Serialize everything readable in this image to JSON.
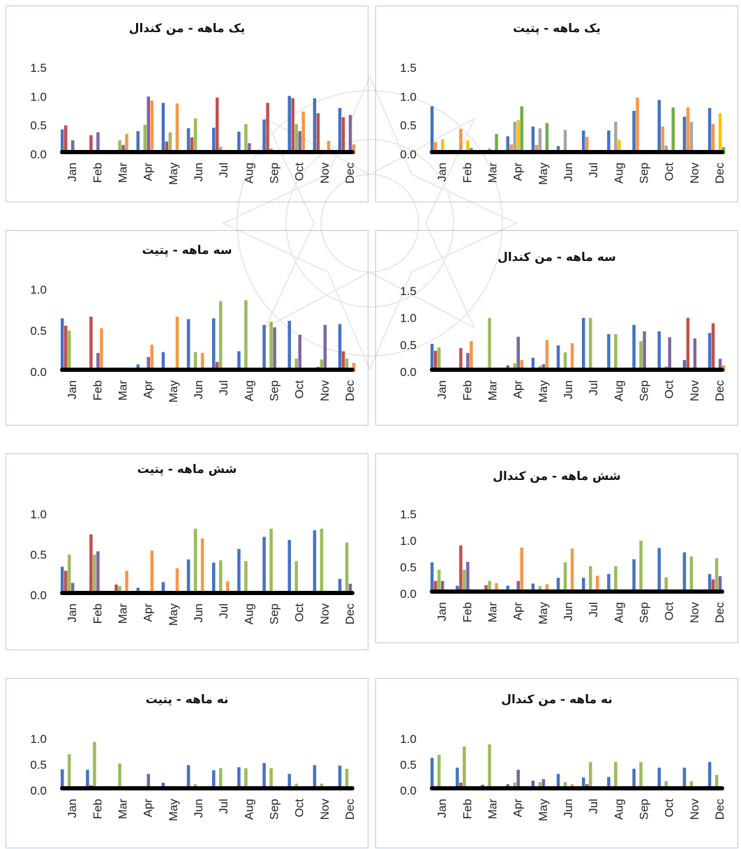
{
  "months": [
    "Jan",
    "Feb",
    "Mar",
    "Apr",
    "May",
    "Jun",
    "Jul",
    "Aug",
    "Sep",
    "Oct",
    "Nov",
    "Dec"
  ],
  "colors": {
    "blue": "#4472c4",
    "red": "#c0504d",
    "green": "#9bbb59",
    "purple": "#8064a2",
    "orange": "#f79646",
    "gray": "#a5a5a5",
    "yellow": "#ffc000",
    "darkgreen": "#70ad47",
    "baseline": "#000000"
  },
  "chart_data": [
    {
      "type": "bar",
      "title": "یک ماهه - من کندال",
      "categories": [
        "Jan",
        "Feb",
        "Mar",
        "Apr",
        "May",
        "Jun",
        "Jul",
        "Aug",
        "Sep",
        "Oct",
        "Nov",
        "Dec"
      ],
      "yticks": [
        "0.0",
        "0.5",
        "1.0",
        "1.5"
      ],
      "ylim": [
        0,
        1.5
      ],
      "series": [
        {
          "color": "blue",
          "values": [
            0.43,
            0,
            0,
            0.4,
            0.89,
            0.45,
            0.46,
            0.39,
            0.6,
            1.01,
            0.97,
            0.8
          ]
        },
        {
          "color": "red",
          "values": [
            0.5,
            0.33,
            0,
            0,
            0.22,
            0.29,
            0.98,
            0,
            0.89,
            0.97,
            0.71,
            0.64
          ]
        },
        {
          "color": "green",
          "values": [
            0,
            0,
            0.24,
            0.51,
            0.38,
            0.62,
            0.13,
            0.52,
            0.1,
            0.52,
            0,
            0
          ]
        },
        {
          "color": "purple",
          "values": [
            0.24,
            0.38,
            0.16,
            1.0,
            0,
            0,
            0,
            0.19,
            0,
            0.4,
            0,
            0.68
          ]
        },
        {
          "color": "orange",
          "values": [
            0,
            0,
            0.35,
            0.93,
            0.88,
            0,
            0,
            0,
            0,
            0.74,
            0.23,
            0.17
          ]
        }
      ]
    },
    {
      "type": "bar",
      "title": "یک ماهه - پتیت",
      "categories": [
        "Jan",
        "Feb",
        "Mar",
        "Apr",
        "May",
        "Jun",
        "Jul",
        "Aug",
        "Sep",
        "Oct",
        "Nov",
        "Dec"
      ],
      "yticks": [
        "0.0",
        "0.5",
        "1.0",
        "1.5"
      ],
      "ylim": [
        0,
        1.5
      ],
      "series": [
        {
          "color": "blue",
          "values": [
            0.83,
            0,
            0,
            0.31,
            0.48,
            0.14,
            0.41,
            0.41,
            0.75,
            0.94,
            0.65,
            0.8
          ]
        },
        {
          "color": "orange",
          "values": [
            0.21,
            0.44,
            0,
            0.17,
            0.16,
            0.05,
            0.3,
            0,
            0.98,
            0.48,
            0.81,
            0.52
          ]
        },
        {
          "color": "gray",
          "values": [
            0,
            0,
            0.1,
            0.56,
            0.45,
            0.42,
            0,
            0.56,
            0,
            0.15,
            0.56,
            0
          ]
        },
        {
          "color": "yellow",
          "values": [
            0.26,
            0.24,
            0,
            0.59,
            0,
            0,
            0,
            0.25,
            0,
            0,
            0,
            0.71
          ]
        },
        {
          "color": "darkgreen",
          "values": [
            0,
            0.11,
            0.35,
            0.83,
            0.54,
            0,
            0,
            0,
            0,
            0.81,
            0,
            0.12
          ]
        }
      ]
    },
    {
      "type": "bar",
      "title": "سه ماهه - پتیت",
      "categories": [
        "Jan",
        "Feb",
        "Mar",
        "Apr",
        "May",
        "Jun",
        "Jul",
        "Aug",
        "Sep",
        "Oct",
        "Nov",
        "Dec"
      ],
      "yticks": [
        "0.0",
        "0.5",
        "1.0"
      ],
      "ylim": [
        0,
        1.0
      ],
      "series": [
        {
          "color": "blue",
          "values": [
            0.65,
            0,
            0,
            0.09,
            0.24,
            0.64,
            0.65,
            0.25,
            0.57,
            0.62,
            0,
            0.58
          ]
        },
        {
          "color": "red",
          "values": [
            0.56,
            0.67,
            0.05,
            0.05,
            0,
            0,
            0.12,
            0,
            0,
            0,
            0.06,
            0.25
          ]
        },
        {
          "color": "green",
          "values": [
            0.5,
            0,
            0,
            0,
            0,
            0.24,
            0.86,
            0.87,
            0.61,
            0.16,
            0.15,
            0.16
          ]
        },
        {
          "color": "purple",
          "values": [
            0,
            0.23,
            0.02,
            0.18,
            0,
            0,
            0,
            0,
            0.54,
            0.45,
            0.57,
            0
          ]
        },
        {
          "color": "orange",
          "values": [
            0,
            0.53,
            0.04,
            0.33,
            0.67,
            0.23,
            0,
            0,
            0,
            0,
            0,
            0.11
          ]
        }
      ]
    },
    {
      "type": "bar",
      "title": "سه ماهه - من کندال",
      "categories": [
        "Jan",
        "Feb",
        "Mar",
        "Apr",
        "May",
        "Jun",
        "Jul",
        "Aug",
        "Sep",
        "Oct",
        "Nov",
        "Dec"
      ],
      "yticks": [
        "0.0",
        "0.5",
        "1.0",
        "1.5"
      ],
      "ylim": [
        0,
        1.5
      ],
      "series": [
        {
          "color": "blue",
          "values": [
            0.52,
            0,
            0,
            0.12,
            0.26,
            0.49,
            1.0,
            0.7,
            0.87,
            0.75,
            0.22,
            0.72
          ]
        },
        {
          "color": "red",
          "values": [
            0.39,
            0.44,
            0,
            0,
            0,
            0,
            0,
            0,
            0,
            0,
            1.0,
            0.9
          ]
        },
        {
          "color": "green",
          "values": [
            0.45,
            0,
            1.0,
            0.16,
            0.11,
            0.36,
            1.0,
            0.7,
            0.57,
            0.1,
            0,
            0
          ]
        },
        {
          "color": "purple",
          "values": [
            0,
            0.35,
            0,
            0.65,
            0.14,
            0,
            0,
            0,
            0.75,
            0.64,
            0.62,
            0.24
          ]
        },
        {
          "color": "orange",
          "values": [
            0,
            0.57,
            0,
            0.22,
            0.59,
            0.53,
            0,
            0,
            0,
            0,
            0,
            0.12
          ]
        }
      ]
    },
    {
      "type": "bar",
      "title": "شش ماهه - پتیت",
      "categories": [
        "Jan",
        "Feb",
        "Mar",
        "Apr",
        "May",
        "Jun",
        "Jul",
        "Aug",
        "Sep",
        "Oct",
        "Nov",
        "Dec"
      ],
      "yticks": [
        "0.0",
        "0.5",
        "1.0"
      ],
      "ylim": [
        0,
        1.0
      ],
      "series": [
        {
          "color": "blue",
          "values": [
            0.35,
            0,
            0,
            0.09,
            0.16,
            0.44,
            0.4,
            0.57,
            0.72,
            0.68,
            0.8,
            0.2
          ]
        },
        {
          "color": "red",
          "values": [
            0.3,
            0.75,
            0.13,
            0,
            0,
            0,
            0,
            0,
            0,
            0,
            0,
            0
          ]
        },
        {
          "color": "green",
          "values": [
            0.5,
            0.5,
            0.11,
            0.05,
            0,
            0.82,
            0.43,
            0.42,
            0.82,
            0.42,
            0.82,
            0.65
          ]
        },
        {
          "color": "purple",
          "values": [
            0.15,
            0.54,
            0,
            0,
            0,
            0,
            0,
            0,
            0,
            0,
            0,
            0.14
          ]
        },
        {
          "color": "orange",
          "values": [
            0,
            0,
            0.3,
            0.55,
            0.33,
            0.7,
            0.17,
            0,
            0,
            0,
            0,
            0
          ]
        }
      ]
    },
    {
      "type": "bar",
      "title": "شش ماهه - من کندال",
      "categories": [
        "Jan",
        "Feb",
        "Mar",
        "Apr",
        "May",
        "Jun",
        "Jul",
        "Aug",
        "Sep",
        "Oct",
        "Nov",
        "Dec"
      ],
      "yticks": [
        "0.0",
        "0.5",
        "1.0",
        "1.5"
      ],
      "ylim": [
        0,
        1.5
      ],
      "series": [
        {
          "color": "blue",
          "values": [
            0.59,
            0.15,
            0,
            0.15,
            0.19,
            0.3,
            0.3,
            0.37,
            0.65,
            0.86,
            0.78,
            0.37
          ]
        },
        {
          "color": "red",
          "values": [
            0.24,
            0.91,
            0.16,
            0,
            0,
            0,
            0,
            0,
            0,
            0,
            0,
            0.27
          ]
        },
        {
          "color": "green",
          "values": [
            0.45,
            0.45,
            0.24,
            0,
            0.14,
            0.59,
            0.52,
            0.52,
            1.0,
            0.31,
            0.7,
            0.67
          ]
        },
        {
          "color": "purple",
          "values": [
            0.24,
            0.6,
            0,
            0.24,
            0,
            0,
            0,
            0,
            0,
            0,
            0,
            0.33
          ]
        },
        {
          "color": "orange",
          "values": [
            0,
            0,
            0.2,
            0.87,
            0.18,
            0.85,
            0.34,
            0,
            0,
            0,
            0,
            0
          ]
        }
      ]
    },
    {
      "type": "bar",
      "title": "نه ماهه - پتیت",
      "categories": [
        "Jan",
        "Feb",
        "Mar",
        "Apr",
        "May",
        "Jun",
        "Jul",
        "Aug",
        "Sep",
        "Oct",
        "Nov",
        "Dec"
      ],
      "yticks": [
        "0.0",
        "0.5",
        "1.0"
      ],
      "ylim": [
        0,
        1.0
      ],
      "series": [
        {
          "color": "blue",
          "values": [
            0.41,
            0.4,
            0,
            0,
            0.15,
            0.49,
            0.39,
            0.45,
            0.53,
            0.32,
            0.49,
            0.48
          ]
        },
        {
          "color": "red",
          "values": [
            0.05,
            0.1,
            0,
            0,
            0,
            0,
            0,
            0,
            0,
            0,
            0,
            0
          ]
        },
        {
          "color": "green",
          "values": [
            0.7,
            0.94,
            0.52,
            0,
            0,
            0.12,
            0.43,
            0.43,
            0.43,
            0.13,
            0.13,
            0.42
          ]
        },
        {
          "color": "purple",
          "values": [
            0,
            0,
            0,
            0.32,
            0.05,
            0,
            0,
            0,
            0,
            0,
            0,
            0
          ]
        },
        {
          "color": "orange",
          "values": [
            0,
            0,
            0,
            0,
            0,
            0,
            0,
            0,
            0,
            0,
            0,
            0
          ]
        }
      ]
    },
    {
      "type": "bar",
      "title": "نه ماهه - من کندال",
      "categories": [
        "Jan",
        "Feb",
        "Mar",
        "Apr",
        "May",
        "Jun",
        "Jul",
        "Aug",
        "Sep",
        "Oct",
        "Nov",
        "Dec"
      ],
      "yticks": [
        "0.0",
        "0.5",
        "1.0"
      ],
      "ylim": [
        0,
        1.0
      ],
      "series": [
        {
          "color": "blue",
          "values": [
            0.63,
            0.44,
            0.11,
            0.12,
            0.19,
            0.32,
            0.25,
            0.26,
            0.42,
            0.44,
            0.44,
            0.55
          ]
        },
        {
          "color": "red",
          "values": [
            0.05,
            0.15,
            0,
            0,
            0,
            0,
            0.12,
            0,
            0,
            0,
            0,
            0
          ]
        },
        {
          "color": "green",
          "values": [
            0.69,
            0.85,
            0.89,
            0.15,
            0.16,
            0.16,
            0.55,
            0.55,
            0.55,
            0.18,
            0.18,
            0.3
          ]
        },
        {
          "color": "purple",
          "values": [
            0,
            0,
            0,
            0.4,
            0.22,
            0,
            0,
            0,
            0,
            0,
            0,
            0.05
          ]
        },
        {
          "color": "orange",
          "values": [
            0,
            0,
            0,
            0,
            0,
            0.12,
            0,
            0,
            0,
            0,
            0,
            0
          ]
        }
      ]
    }
  ]
}
